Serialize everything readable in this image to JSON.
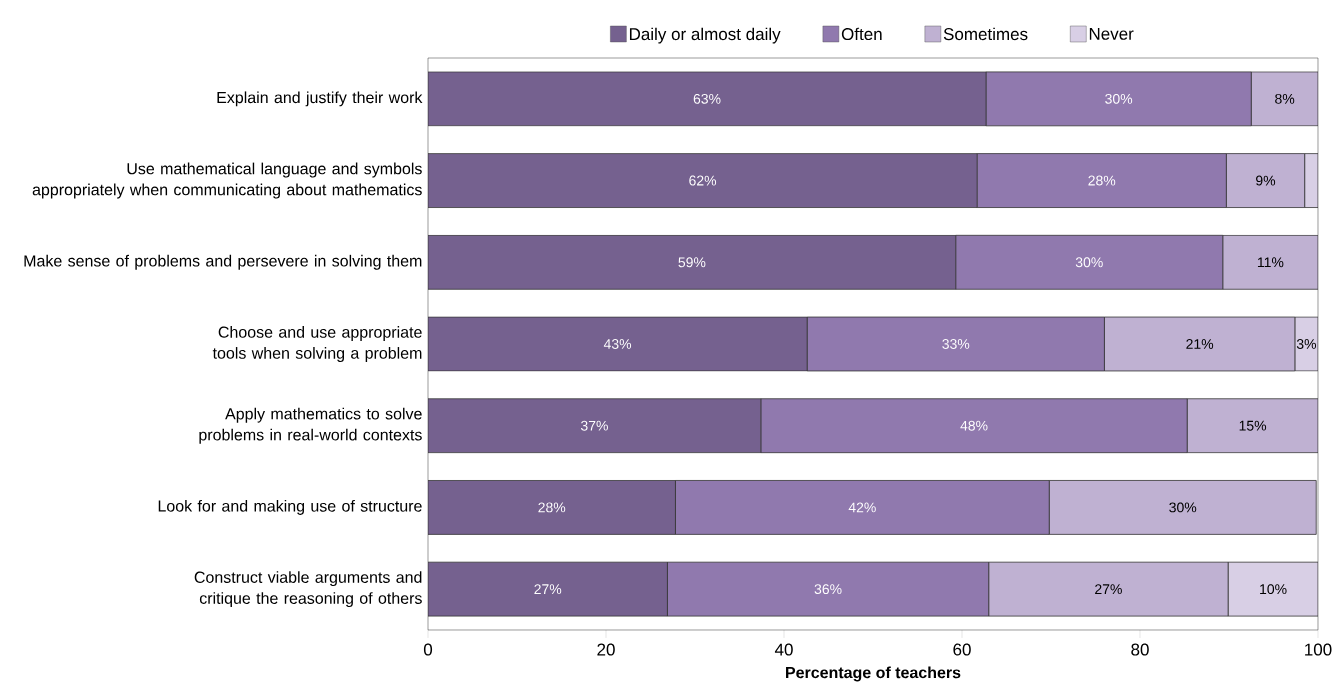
{
  "chart_data": {
    "type": "bar",
    "orientation": "horizontal",
    "stacked": true,
    "categories": [
      "Explain and justify their work",
      "Use mathematical language and symbols appropriately when communicating about mathematics",
      "Make sense of problems and persevere in solving them",
      "Choose and use appropriate tools when solving a problem",
      "Apply mathematics to solve problems in real-world contexts",
      "Look for and making use of structure",
      "Construct viable arguments and critique the reasoning of others"
    ],
    "series": [
      {
        "name": "Daily or almost daily",
        "color": "#75618f",
        "values": [
          62.7,
          61.7,
          59.3,
          42.6,
          37.4,
          27.8,
          26.9
        ],
        "value_labels": [
          "63%",
          "62%",
          "59%",
          "43%",
          "37%",
          "28%",
          "27%"
        ]
      },
      {
        "name": "Often",
        "color": "#9079ae",
        "values": [
          29.8,
          28.0,
          30.0,
          33.4,
          47.9,
          42.0,
          36.1
        ],
        "value_labels": [
          "30%",
          "28%",
          "30%",
          "33%",
          "48%",
          "42%",
          "36%"
        ]
      },
      {
        "name": "Sometimes",
        "color": "#bfb1d2",
        "values": [
          7.5,
          8.8,
          10.7,
          21.4,
          14.7,
          30.0,
          26.9
        ],
        "value_labels": [
          "8%",
          "9%",
          "11%",
          "21%",
          "15%",
          "30%",
          "27%"
        ]
      },
      {
        "name": "Never",
        "color": "#d8cfe5",
        "values": [
          null,
          1.5,
          null,
          2.6,
          null,
          null,
          10.1
        ],
        "value_labels": [
          null,
          null,
          null,
          "3%",
          null,
          null,
          "10%"
        ]
      }
    ],
    "xlabel": "Percentage of teachers",
    "xlim": [
      0,
      100
    ],
    "xticks": [
      0,
      20,
      40,
      60,
      80,
      100
    ],
    "legend": "top",
    "grid": false
  }
}
